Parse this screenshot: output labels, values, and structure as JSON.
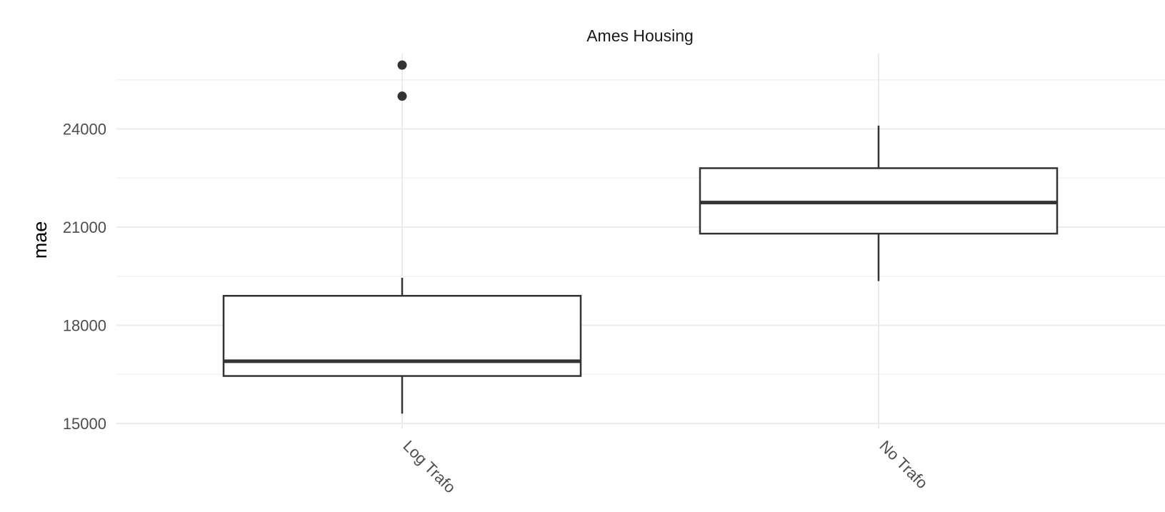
{
  "chart_data": {
    "type": "box",
    "title": "Ames Housing",
    "xlabel": "",
    "ylabel": "mae",
    "ylim": [
      14400,
      26300
    ],
    "y_major_ticks": [
      15000,
      18000,
      21000,
      24000
    ],
    "y_minor_ticks": [
      16500,
      19500,
      22500,
      25500
    ],
    "y_tick_labels": [
      "15000",
      "18000",
      "21000",
      "24000"
    ],
    "grid": true,
    "categories": [
      "Log Trafo",
      "No Trafo"
    ],
    "boxes": [
      {
        "category": "Log Trafo",
        "whisker_low": 15300,
        "q1": 16450,
        "median": 16900,
        "q3": 18900,
        "whisker_high": 19450,
        "outliers": [
          25000,
          25950
        ]
      },
      {
        "category": "No Trafo",
        "whisker_low": 19350,
        "q1": 20800,
        "median": 21750,
        "q3": 22800,
        "whisker_high": 24100,
        "outliers": []
      }
    ],
    "colors": {
      "box_stroke": "#333333",
      "grid": "#ebebeb",
      "background": "#ffffff"
    }
  }
}
